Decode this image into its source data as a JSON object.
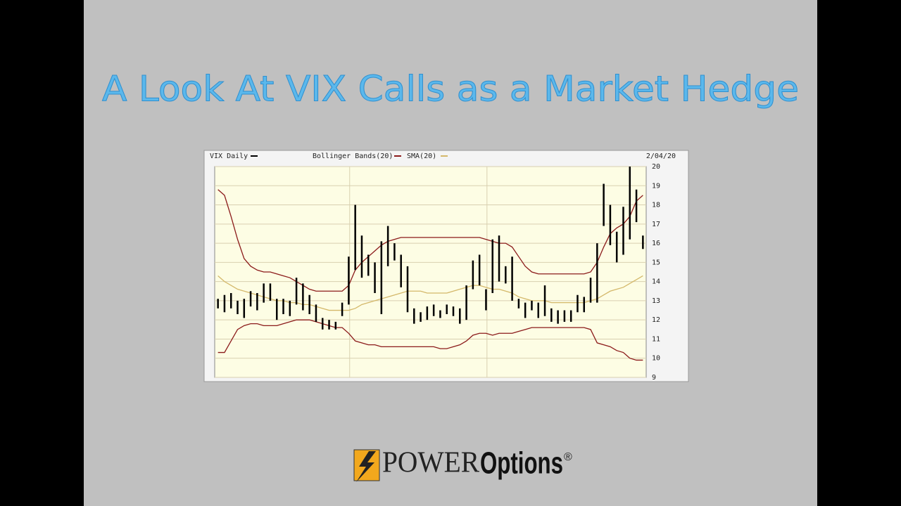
{
  "chart_data": {
    "type": "ohlc",
    "title": "A Look At VIX Calls as a Market Hedge",
    "date_label": "2/04/20",
    "categories": [
      null,
      null,
      null,
      null,
      null,
      null,
      null,
      null,
      null,
      null,
      null,
      null,
      null,
      null,
      null,
      null,
      null,
      null,
      null,
      null,
      null,
      null,
      null,
      null,
      null,
      null,
      null,
      null,
      null,
      null,
      null,
      null,
      null,
      null,
      null,
      null,
      null,
      null,
      null,
      null,
      null,
      null,
      null,
      null,
      null,
      null,
      null,
      null,
      null,
      null,
      null,
      null,
      null,
      null,
      null,
      null,
      null,
      null,
      null,
      null,
      null,
      null,
      null,
      null,
      null,
      null
    ],
    "series": [
      {
        "name": "VIX Daily",
        "color": "#000000",
        "high": [
          13.1,
          13.3,
          13.4,
          13.0,
          13.1,
          13.5,
          13.4,
          13.9,
          13.9,
          13.1,
          13.1,
          13.0,
          14.2,
          13.9,
          13.3,
          12.8,
          12.1,
          12.0,
          11.9,
          12.9,
          15.3,
          18.0,
          16.4,
          15.4,
          15.0,
          16.1,
          16.9,
          16.0,
          15.4,
          14.8,
          12.6,
          12.4,
          12.7,
          12.8,
          12.5,
          12.8,
          12.7,
          12.6,
          13.8,
          15.1,
          15.4,
          13.6,
          16.2,
          16.4,
          14.8,
          15.3,
          13.1,
          12.9,
          13.0,
          12.9,
          13.8,
          12.6,
          12.5,
          12.5,
          12.5,
          13.3,
          13.2,
          14.2,
          16.0,
          19.1,
          18.0,
          16.6,
          17.9,
          20.0,
          18.8,
          16.4
        ],
        "low": [
          12.6,
          12.4,
          12.6,
          12.3,
          12.1,
          12.7,
          12.5,
          12.9,
          13.0,
          12.0,
          12.3,
          12.2,
          12.8,
          12.5,
          12.3,
          11.9,
          11.5,
          11.5,
          11.5,
          12.2,
          12.8,
          14.6,
          14.2,
          14.3,
          13.4,
          12.3,
          14.8,
          15.1,
          13.7,
          12.4,
          11.8,
          11.9,
          12.0,
          12.2,
          12.1,
          12.3,
          12.2,
          11.8,
          12.0,
          13.6,
          13.8,
          12.5,
          13.4,
          14.0,
          13.9,
          13.0,
          12.6,
          12.1,
          12.5,
          12.1,
          12.2,
          11.9,
          11.8,
          11.9,
          11.9,
          12.4,
          12.4,
          12.9,
          12.9,
          16.9,
          15.9,
          15.0,
          15.4,
          16.2,
          17.1,
          15.7
        ]
      }
    ],
    "bands": {
      "name": "Bollinger Bands(20)",
      "color": "#8b1a1a",
      "upper": [
        18.8,
        18.5,
        17.4,
        16.2,
        15.2,
        14.8,
        14.6,
        14.5,
        14.5,
        14.4,
        14.3,
        14.2,
        14.0,
        13.8,
        13.6,
        13.5,
        13.5,
        13.5,
        13.5,
        13.5,
        13.8,
        14.6,
        15.0,
        15.3,
        15.6,
        15.9,
        16.1,
        16.2,
        16.3,
        16.3,
        16.3,
        16.3,
        16.3,
        16.3,
        16.3,
        16.3,
        16.3,
        16.3,
        16.3,
        16.3,
        16.3,
        16.2,
        16.1,
        16.0,
        16.0,
        15.8,
        15.3,
        14.8,
        14.5,
        14.4,
        14.4,
        14.4,
        14.4,
        14.4,
        14.4,
        14.4,
        14.4,
        14.5,
        15.0,
        15.8,
        16.5,
        16.8,
        17.0,
        17.4,
        18.2,
        18.5
      ],
      "lower": [
        10.3,
        10.3,
        10.9,
        11.5,
        11.7,
        11.8,
        11.8,
        11.7,
        11.7,
        11.7,
        11.8,
        11.9,
        12.0,
        12.0,
        12.0,
        11.9,
        11.8,
        11.7,
        11.6,
        11.6,
        11.3,
        10.9,
        10.8,
        10.7,
        10.7,
        10.6,
        10.6,
        10.6,
        10.6,
        10.6,
        10.6,
        10.6,
        10.6,
        10.6,
        10.5,
        10.5,
        10.6,
        10.7,
        10.9,
        11.2,
        11.3,
        11.3,
        11.2,
        11.3,
        11.3,
        11.3,
        11.4,
        11.5,
        11.6,
        11.6,
        11.6,
        11.6,
        11.6,
        11.6,
        11.6,
        11.6,
        11.6,
        11.5,
        10.8,
        10.7,
        10.6,
        10.4,
        10.3,
        10.0,
        9.9,
        9.9
      ]
    },
    "sma": {
      "name": "SMA(20)",
      "color": "#d4b86a",
      "values": [
        14.3,
        14.0,
        13.8,
        13.6,
        13.5,
        13.4,
        13.3,
        13.2,
        13.1,
        13.0,
        13.0,
        12.9,
        12.9,
        12.8,
        12.8,
        12.7,
        12.6,
        12.5,
        12.5,
        12.5,
        12.5,
        12.6,
        12.8,
        12.9,
        13.0,
        13.1,
        13.2,
        13.3,
        13.4,
        13.5,
        13.5,
        13.5,
        13.4,
        13.4,
        13.4,
        13.4,
        13.5,
        13.6,
        13.7,
        13.8,
        13.8,
        13.7,
        13.6,
        13.6,
        13.5,
        13.4,
        13.2,
        13.1,
        13.0,
        13.0,
        13.0,
        12.9,
        12.9,
        12.9,
        12.9,
        12.9,
        12.9,
        13.0,
        13.1,
        13.3,
        13.5,
        13.6,
        13.7,
        13.9,
        14.1,
        14.3
      ]
    },
    "ylim": [
      9,
      20
    ],
    "yticks": [
      9,
      10,
      11,
      12,
      13,
      14,
      15,
      16,
      17,
      18,
      19,
      20
    ],
    "grid": true
  },
  "logo": {
    "power": "POWER",
    "options": "Options",
    "mark": "®"
  }
}
